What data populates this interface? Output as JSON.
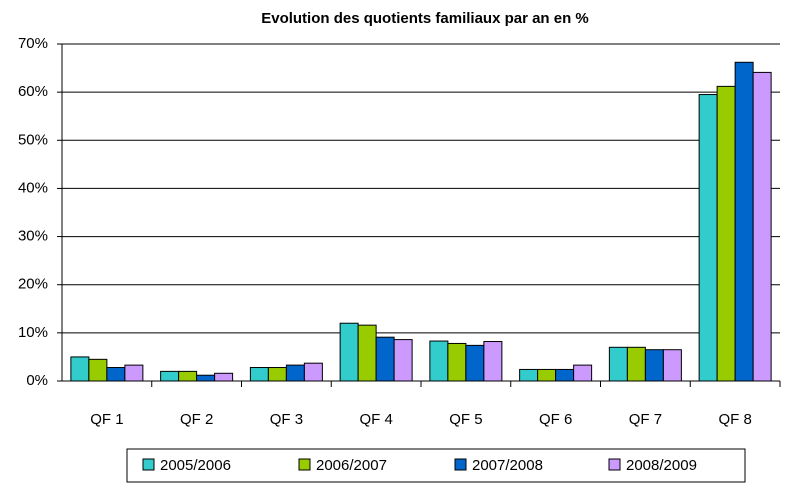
{
  "chart_data": {
    "type": "bar",
    "title": "Evolution des quotients familiaux par an en %",
    "categories": [
      "QF 1",
      "QF 2",
      "QF 3",
      "QF 4",
      "QF 5",
      "QF 6",
      "QF 7",
      "QF 8"
    ],
    "series": [
      {
        "name": "2005/2006",
        "color": "#33cccc",
        "values": [
          5,
          2,
          2.8,
          12,
          8.3,
          2.4,
          7,
          59.5
        ]
      },
      {
        "name": "2006/2007",
        "color": "#99cc00",
        "values": [
          4.5,
          2,
          2.8,
          11.6,
          7.8,
          2.4,
          7,
          61.2
        ]
      },
      {
        "name": "2007/2008",
        "color": "#0066cc",
        "values": [
          2.8,
          1.2,
          3.3,
          9.1,
          7.4,
          2.4,
          6.5,
          66.2
        ]
      },
      {
        "name": "2008/2009",
        "color": "#cc99ff",
        "values": [
          3.3,
          1.6,
          3.7,
          8.6,
          8.2,
          3.3,
          6.5,
          64.1
        ]
      }
    ],
    "ylim": [
      0,
      70
    ],
    "yticks": [
      {
        "value": 0,
        "label": "0%"
      },
      {
        "value": 10,
        "label": "10%"
      },
      {
        "value": 20,
        "label": "20%"
      },
      {
        "value": 30,
        "label": "30%"
      },
      {
        "value": 40,
        "label": "40%"
      },
      {
        "value": 50,
        "label": "50%"
      },
      {
        "value": 60,
        "label": "60%"
      },
      {
        "value": 70,
        "label": "70%"
      }
    ],
    "grid": true
  }
}
